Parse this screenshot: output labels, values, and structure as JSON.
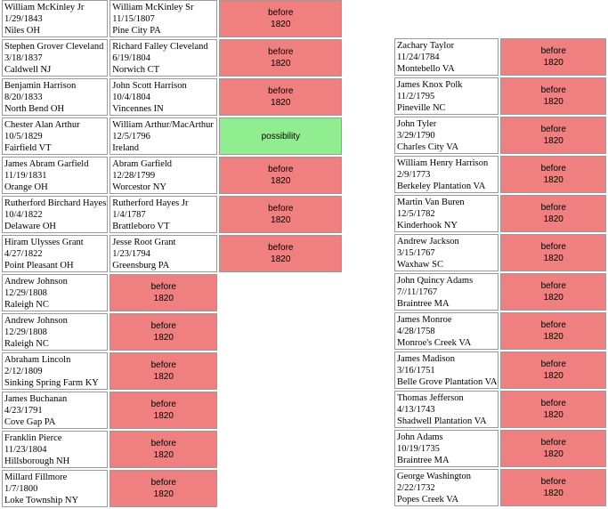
{
  "left_rows": [
    {
      "p": [
        "William McKinley Jr",
        "1/29/1843",
        "Niles OH"
      ],
      "f": [
        "William McKinley Sr",
        "11/15/1807",
        "Pine City PA"
      ],
      "status": [
        "before",
        "1820"
      ],
      "kind": "before"
    },
    {
      "p": [
        "Stephen Grover Cleveland",
        "3/18/1837",
        "Caldwell NJ"
      ],
      "f": [
        "Richard Falley Cleveland",
        "6/19/1804",
        "Norwich CT"
      ],
      "status": [
        "before",
        "1820"
      ],
      "kind": "before"
    },
    {
      "p": [
        "Benjamin Harrison",
        "8/20/1833",
        "North Bend OH"
      ],
      "f": [
        "John Scott Harrison",
        "10/4/1804",
        "Vincennes IN"
      ],
      "status": [
        "before",
        "1820"
      ],
      "kind": "before"
    },
    {
      "p": [
        "Chester Alan Arthur",
        "10/5/1829",
        "Fairfield VT"
      ],
      "f": [
        "William Arthur/MacArthur",
        "12/5/1796",
        "Ireland"
      ],
      "status": [
        "possibility"
      ],
      "kind": "possibility"
    },
    {
      "p": [
        "James Abram Garfield",
        "11/19/1831",
        "Orange OH"
      ],
      "f": [
        "Abram Garfield",
        "12/28/1799",
        "Worcestor NY"
      ],
      "status": [
        "before",
        "1820"
      ],
      "kind": "before"
    },
    {
      "p": [
        "Rutherford Birchard Hayes",
        "10/4/1822",
        "Delaware OH"
      ],
      "f": [
        "Rutherford Hayes Jr",
        "1/4/1787",
        "Brattleboro VT"
      ],
      "status": [
        "before",
        "1820"
      ],
      "kind": "before"
    },
    {
      "p": [
        "Hiram Ulysses Grant",
        "4/27/1822",
        "Point Pleasant OH"
      ],
      "f": [
        "Jesse Root Grant",
        "1/23/1794",
        "Greensburg PA"
      ],
      "status": [
        "before",
        "1820"
      ],
      "kind": "before"
    },
    {
      "p": [
        "Andrew Johnson",
        "12/29/1808",
        "Raleigh NC"
      ],
      "f": null,
      "status": [
        "before",
        "1820"
      ],
      "kind": "before"
    },
    {
      "p": [
        "Andrew Johnson",
        "12/29/1808",
        "Raleigh NC"
      ],
      "f": null,
      "status": [
        "before",
        "1820"
      ],
      "kind": "before"
    },
    {
      "p": [
        "Abraham Lincoln",
        "2/12/1809",
        "Sinking Spring Farm KY"
      ],
      "f": null,
      "status": [
        "before",
        "1820"
      ],
      "kind": "before"
    },
    {
      "p": [
        "James Buchanan",
        "4/23/1791",
        "Cove Gap PA"
      ],
      "f": null,
      "status": [
        "before",
        "1820"
      ],
      "kind": "before"
    },
    {
      "p": [
        "Franklin Pierce",
        "11/23/1804",
        "Hillsborough NH"
      ],
      "f": null,
      "status": [
        "before",
        "1820"
      ],
      "kind": "before"
    },
    {
      "p": [
        "Millard Fillmore",
        "1/7/1800",
        "Loke Township NY"
      ],
      "f": null,
      "status": [
        "before",
        "1820"
      ],
      "kind": "before"
    }
  ],
  "right_rows": [
    {
      "p": [
        "Zachary Taylor",
        "11/24/1784",
        "Montebello VA"
      ],
      "status": [
        "before",
        "1820"
      ],
      "kind": "before"
    },
    {
      "p": [
        "James Knox Polk",
        "11/2/1795",
        "Pineville NC"
      ],
      "status": [
        "before",
        "1820"
      ],
      "kind": "before"
    },
    {
      "p": [
        "John Tyler",
        "3/29/1790",
        "Charles City VA"
      ],
      "status": [
        "before",
        "1820"
      ],
      "kind": "before"
    },
    {
      "p": [
        "William Henry Harrison",
        "2/9/1773",
        "Berkeley Plantation VA"
      ],
      "status": [
        "before",
        "1820"
      ],
      "kind": "before"
    },
    {
      "p": [
        "Martin Van Buren",
        "12/5/1782",
        "Kinderhook NY"
      ],
      "status": [
        "before",
        "1820"
      ],
      "kind": "before"
    },
    {
      "p": [
        "Andrew Jackson",
        "3/15/1767",
        "Waxhaw SC"
      ],
      "status": [
        "before",
        "1820"
      ],
      "kind": "before"
    },
    {
      "p": [
        "John Quincy Adams",
        "7//11/1767",
        "Braintree MA"
      ],
      "status": [
        "before",
        "1820"
      ],
      "kind": "before"
    },
    {
      "p": [
        "James Monroe",
        "4/28/1758",
        "Monroe's Creek VA"
      ],
      "status": [
        "before",
        "1820"
      ],
      "kind": "before"
    },
    {
      "p": [
        "James Madison",
        "3/16/1751",
        "Belle Grove Plantation VA"
      ],
      "status": [
        "before",
        "1820"
      ],
      "kind": "before"
    },
    {
      "p": [
        "Thomas Jefferson",
        "4/13/1743",
        "Shadwell Plantation VA"
      ],
      "status": [
        "before",
        "1820"
      ],
      "kind": "before"
    },
    {
      "p": [
        "John Adams",
        "10/19/1735",
        "Braintree MA"
      ],
      "status": [
        "before",
        "1820"
      ],
      "kind": "before"
    },
    {
      "p": [
        "George Washington",
        "2/22/1732",
        "Popes Creek VA"
      ],
      "status": [
        "before",
        "1820"
      ],
      "kind": "before"
    }
  ]
}
